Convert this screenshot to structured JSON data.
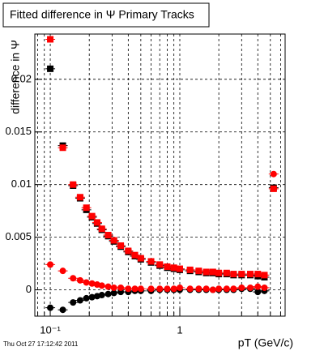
{
  "chart_data": {
    "type": "scatter",
    "title": "Fitted difference in  Ψ   Primary Tracks",
    "y_label": "difference in Ψ",
    "x_label": "pT (GeV/c)",
    "footer": "Thu Oct 27 17:12:42 2011",
    "log_x": true,
    "grid": true,
    "xlim": [
      0.076,
      6.5
    ],
    "ylim": [
      -0.0025,
      0.0243
    ],
    "xticks": [
      {
        "value": 0.1,
        "label": "10⁻¹"
      },
      1
    ],
    "xminorticks": [
      0.08,
      0.09,
      0.2,
      0.3,
      0.4,
      0.5,
      0.6,
      0.7,
      0.8,
      0.9,
      2,
      3,
      4,
      5,
      6
    ],
    "yticks": [
      0,
      0.005,
      0.01,
      0.015,
      0.02
    ],
    "x": [
      0.1,
      0.125,
      0.15,
      0.17,
      0.19,
      0.21,
      0.23,
      0.25,
      0.28,
      0.31,
      0.35,
      0.4,
      0.45,
      0.5,
      0.6,
      0.7,
      0.8,
      0.9,
      1.0,
      1.2,
      1.4,
      1.6,
      1.8,
      2.0,
      2.3,
      2.6,
      3.0,
      3.5,
      4.0,
      4.5,
      5.3
    ],
    "series": [
      {
        "marker": "square",
        "color": "#000000",
        "values": [
          0.021,
          0.0137,
          0.0099,
          0.0087,
          0.0076,
          0.0069,
          0.0063,
          0.0057,
          0.0051,
          0.0046,
          0.0041,
          0.0036,
          0.0032,
          0.0029,
          0.0026,
          0.0023,
          0.0021,
          0.002,
          0.0019,
          0.0018,
          0.0017,
          0.0016,
          0.0016,
          0.0015,
          0.0015,
          0.0014,
          0.0014,
          0.0014,
          0.0013,
          0.0012,
          0.0097
        ]
      },
      {
        "marker": "square",
        "color": "#ff0000",
        "values": [
          0.0238,
          0.0135,
          0.01,
          0.0088,
          0.0078,
          0.007,
          0.0064,
          0.0058,
          0.0052,
          0.0047,
          0.0042,
          0.0037,
          0.0033,
          0.003,
          0.0027,
          0.0024,
          0.0022,
          0.0021,
          0.002,
          0.0019,
          0.0018,
          0.0017,
          0.0017,
          0.0016,
          0.0016,
          0.0015,
          0.0015,
          0.0015,
          0.0015,
          0.0014,
          0.0096
        ]
      },
      {
        "marker": "circle",
        "color": "#000000",
        "values": [
          -0.0017,
          -0.0019,
          -0.0012,
          -0.001,
          -0.0008,
          -0.0007,
          -0.0006,
          -0.0005,
          -0.0004,
          -0.0003,
          -0.0002,
          -0.0002,
          -0.0001,
          -0.0001,
          -0.0001,
          0,
          0,
          0,
          0,
          0,
          0,
          0,
          0,
          0,
          0,
          0,
          0.0001,
          0.0001,
          -0.0002,
          -0.0001,
          null
        ]
      },
      {
        "marker": "circle",
        "color": "#ff0000",
        "values": [
          0.0024,
          0.0018,
          0.0011,
          0.0009,
          0.0007,
          0.0006,
          0.0005,
          0.0004,
          0.0003,
          0.0002,
          0.0002,
          0.0001,
          0.0001,
          0.0001,
          0.0001,
          0.0001,
          0.0001,
          0.0001,
          0.0002,
          0.0001,
          0.0001,
          0.0001,
          0,
          0.0001,
          0.0001,
          0.0001,
          0.0002,
          0.0002,
          0.0003,
          0.0002,
          0.011
        ]
      }
    ]
  }
}
